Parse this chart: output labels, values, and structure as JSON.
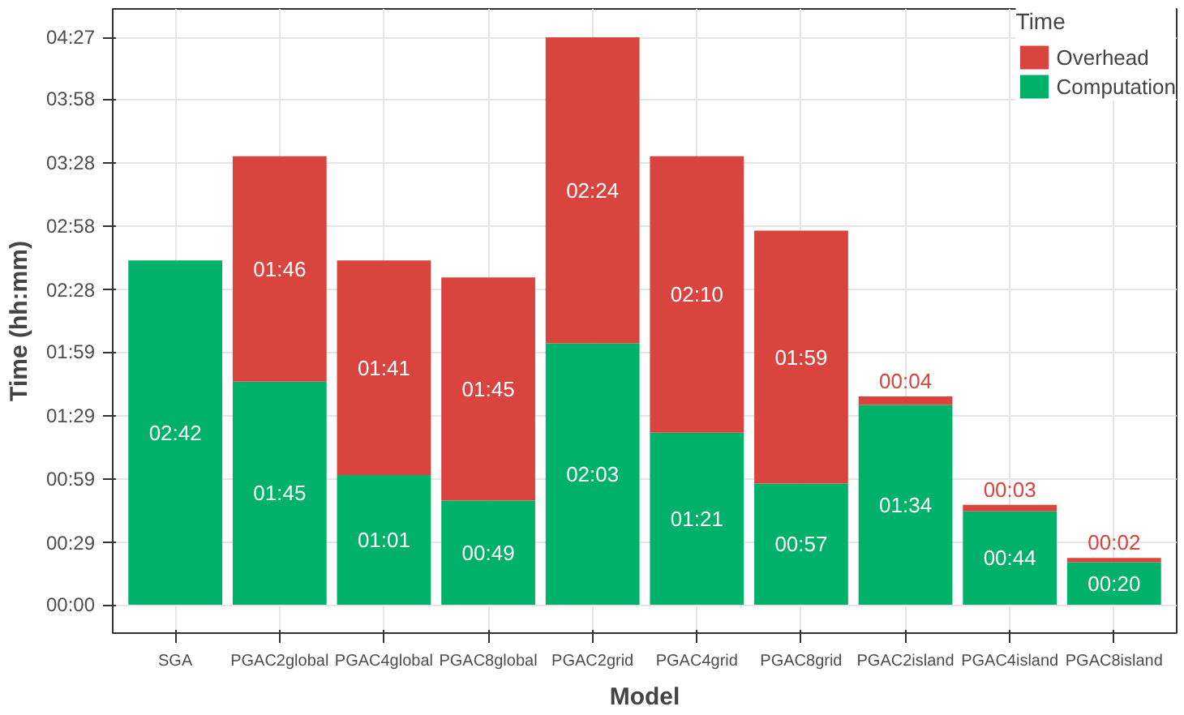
{
  "chart_data": {
    "type": "bar",
    "stacked": true,
    "xlabel": "Model",
    "ylabel": "Time (hh:mm)",
    "legend_title": "Time",
    "legend": "top right",
    "grid": true,
    "categories": [
      "SGA",
      "PGAC2global",
      "PGAC4global",
      "PGAC8global",
      "PGAC2grid",
      "PGAC4grid",
      "PGAC8grid",
      "PGAC2island",
      "PGAC4island",
      "PGAC8island"
    ],
    "series": [
      {
        "name": "Computation",
        "color": "#00b16a",
        "values": [
          162,
          105,
          61,
          49,
          123,
          81,
          57,
          94,
          44,
          20
        ],
        "value_labels": [
          "02:42",
          "01:45",
          "01:01",
          "00:49",
          "02:03",
          "01:21",
          "00:57",
          "01:34",
          "00:44",
          "00:20"
        ]
      },
      {
        "name": "Overhead",
        "color": "#d9443f",
        "values": [
          null,
          106,
          101,
          105,
          144,
          130,
          119,
          4,
          3,
          2
        ],
        "value_labels": [
          null,
          "01:46",
          "01:41",
          "01:45",
          "02:24",
          "02:10",
          "01:59",
          "00:04",
          "00:03",
          "00:02"
        ]
      }
    ],
    "ylim": [
      -13.35,
      280.35
    ],
    "yticks": [
      {
        "value": 0,
        "label": "00:00"
      },
      {
        "value": 29,
        "label": "00:29"
      },
      {
        "value": 59,
        "label": "00:59"
      },
      {
        "value": 89,
        "label": "01:29"
      },
      {
        "value": 119,
        "label": "01:59"
      },
      {
        "value": 148,
        "label": "02:28"
      },
      {
        "value": 178,
        "label": "02:58"
      },
      {
        "value": 208,
        "label": "03:28"
      },
      {
        "value": 238,
        "label": "03:58"
      },
      {
        "value": 267,
        "label": "04:27"
      }
    ]
  }
}
